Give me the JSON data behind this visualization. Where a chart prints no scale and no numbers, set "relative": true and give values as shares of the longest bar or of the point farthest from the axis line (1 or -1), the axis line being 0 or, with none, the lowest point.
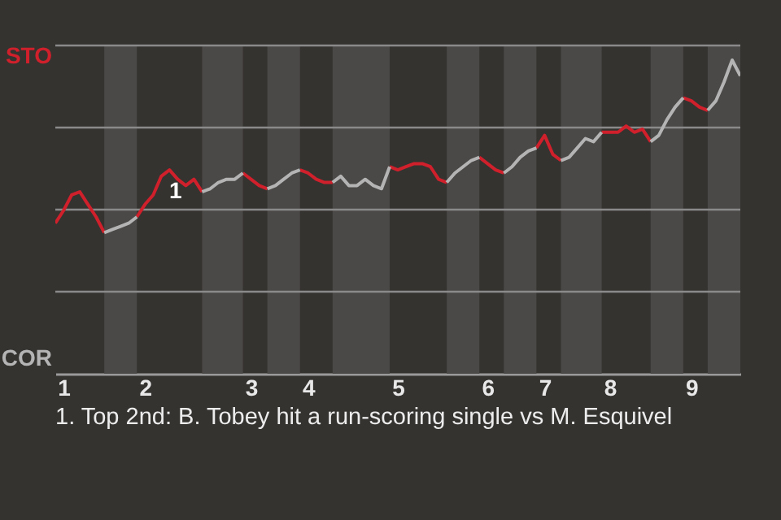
{
  "chart_data": {
    "type": "line",
    "relative": true,
    "categories": [
      null,
      "1",
      null,
      null,
      null,
      null,
      null,
      null,
      null,
      null,
      null,
      "2",
      null,
      null,
      null,
      null,
      null,
      null,
      null,
      null,
      null,
      null,
      null,
      null,
      "3",
      null,
      null,
      null,
      null,
      null,
      null,
      "4",
      null,
      null,
      null,
      null,
      null,
      null,
      null,
      null,
      null,
      null,
      "5",
      null,
      null,
      null,
      null,
      null,
      null,
      null,
      null,
      null,
      null,
      "6",
      null,
      null,
      null,
      null,
      null,
      null,
      "7",
      null,
      null,
      null,
      null,
      null,
      null,
      null,
      "8",
      null,
      null,
      null,
      null,
      null,
      null,
      null,
      null,
      null,
      "9",
      null,
      null,
      null,
      null,
      null,
      null
    ],
    "series": [
      {
        "name": "STO",
        "color": "#d0202c",
        "values": [
          0.48,
          0.52,
          0.57,
          0.58,
          0.54,
          0.5,
          0.45,
          null,
          null,
          null,
          0.5,
          0.54,
          0.57,
          0.63,
          0.65,
          0.62,
          0.6,
          0.62,
          0.58,
          null,
          null,
          null,
          null,
          0.64,
          0.62,
          0.6,
          0.59,
          null,
          null,
          null,
          0.65,
          0.64,
          0.62,
          0.61,
          0.61,
          null,
          null,
          null,
          null,
          null,
          null,
          0.66,
          0.65,
          0.66,
          0.67,
          0.67,
          0.66,
          0.62,
          0.61,
          null,
          null,
          null,
          0.69,
          0.67,
          0.65,
          0.64,
          null,
          null,
          null,
          0.72,
          0.76,
          0.7,
          0.68,
          null,
          null,
          null,
          null,
          0.77,
          0.77,
          0.77,
          0.79,
          0.77,
          0.78,
          0.74,
          null,
          null,
          null,
          0.88,
          0.87,
          0.85,
          0.84,
          null,
          null,
          null,
          null
        ]
      },
      {
        "name": "COR",
        "color": "#b4b4b4",
        "values": [
          null,
          null,
          null,
          null,
          null,
          null,
          0.45,
          0.46,
          0.47,
          0.48,
          0.5,
          null,
          null,
          null,
          null,
          null,
          null,
          null,
          0.58,
          0.59,
          0.61,
          0.62,
          0.62,
          0.64,
          null,
          null,
          0.59,
          0.6,
          0.62,
          0.64,
          0.65,
          null,
          null,
          null,
          0.61,
          0.63,
          0.6,
          0.6,
          0.62,
          0.6,
          0.59,
          0.66,
          null,
          null,
          null,
          null,
          null,
          null,
          0.61,
          0.64,
          0.66,
          0.68,
          0.69,
          null,
          null,
          0.64,
          0.66,
          0.69,
          0.71,
          0.72,
          null,
          null,
          0.68,
          0.69,
          0.72,
          0.75,
          0.74,
          0.77,
          null,
          null,
          null,
          null,
          null,
          0.74,
          0.76,
          0.81,
          0.85,
          0.88,
          null,
          null,
          0.84,
          0.87,
          0.93,
          1,
          0.95
        ]
      }
    ],
    "annotations": [
      "1",
      "1. Top 2nd: B. Tobey hit a run-scoring single vs M. Esquivel"
    ]
  }
}
